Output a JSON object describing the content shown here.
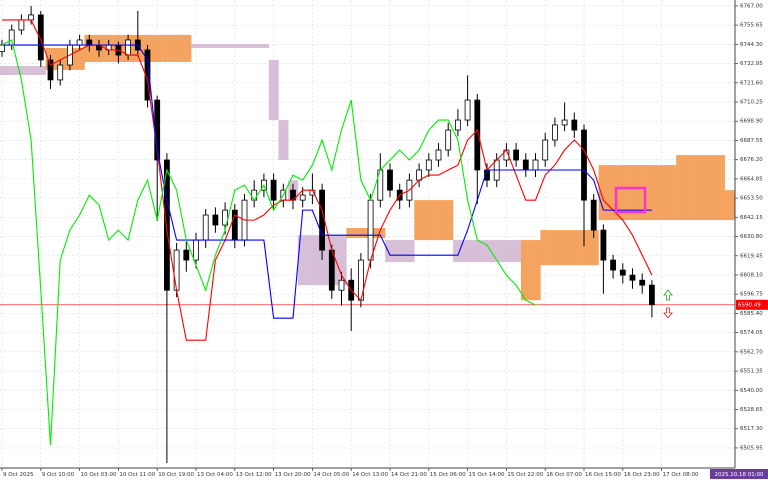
{
  "chart_data": {
    "type": "candlestick",
    "categories": [
      "9 Oct 2025",
      null,
      null,
      null,
      "9 Oct 10:00",
      null,
      null,
      null,
      "10 Oct 03:00",
      null,
      null,
      null,
      "10 Oct 11:00",
      null,
      null,
      null,
      "10 Oct 19:00",
      null,
      null,
      null,
      "13 Oct 04:00",
      null,
      null,
      null,
      "13 Oct 12:00",
      null,
      null,
      null,
      "13 Oct 20:00",
      null,
      null,
      null,
      "14 Oct 05:00",
      null,
      null,
      null,
      "14 Oct 13:00",
      null,
      null,
      null,
      "14 Oct 21:00",
      null,
      null,
      null,
      "15 Oct 06:00",
      null,
      null,
      null,
      "15 Oct 14:00",
      null,
      null,
      null,
      "15 Oct 22:00",
      null,
      null,
      null,
      "16 Oct 07:00",
      null,
      null,
      null,
      "16 Oct 15:00",
      null,
      null,
      null,
      "16 Oct 23:00",
      null,
      null,
      null,
      "17 Oct 08:00",
      null,
      null,
      null,
      null,
      null,
      null,
      null
    ],
    "open": [
      6740.0,
      6743.9,
      6752.8,
      6758.7,
      6761.7,
      6735.1,
      6723.3,
      6732.1,
      6743.9,
      6746.9,
      6743.9,
      6741.0,
      6743.9,
      6738.0,
      6746.9,
      6741.0,
      6711.4,
      6676.0,
      6599.1,
      6622.8,
      6616.9,
      6628.7,
      6643.5,
      6637.6,
      6646.4,
      6628.7,
      6652.3,
      6658.2,
      6664.1,
      6652.3,
      6658.2,
      6652.3,
      6655.3,
      6658.2,
      6622.8,
      6599.1,
      6605.0,
      6593.2,
      6616.9,
      6652.3,
      6670.1,
      6658.2,
      6652.3,
      6664.1,
      6670.1,
      6676.0,
      6681.9,
      6693.7,
      6699.6,
      6711.4,
      6670.1,
      6664.1,
      6676.0,
      6681.9,
      6676.0,
      6670.1,
      6676.0,
      6687.8,
      6696.7,
      6699.6,
      6693.7,
      6652.3,
      6634.6,
      6616.9,
      6611.0,
      6608.0,
      6605.0,
      6602.1,
      null,
      null,
      null,
      null,
      null,
      null,
      null,
      null
    ],
    "high": [
      6747,
      6756,
      6762,
      6767,
      6764,
      6738,
      6735,
      6747,
      6750,
      6750,
      6747,
      6747,
      6746,
      6750,
      6764,
      6744,
      6714,
      6680,
      6627,
      6628,
      6633,
      6647,
      6648,
      6651,
      6650,
      6656,
      6664,
      6668,
      6668,
      6662,
      6662,
      6660,
      6668,
      6662,
      6626,
      6610,
      6612,
      6621,
      6656,
      6680,
      6674,
      6662,
      6668,
      6674,
      6680,
      6686,
      6698,
      6706,
      6726,
      6715,
      6674,
      6680,
      6686,
      6686,
      6680,
      6680,
      6692,
      6701,
      6710,
      6704,
      6697,
      6656,
      6638,
      6620,
      6615,
      6612,
      6609,
      6605,
      null,
      null,
      null,
      null,
      null,
      null,
      null,
      null
    ],
    "low": [
      6737,
      6741,
      6750,
      6756,
      6731,
      6718,
      6720,
      6729,
      6741,
      6740,
      6737,
      6738,
      6733,
      6735,
      6737,
      6707,
      6640,
      6497,
      6595,
      6610,
      6612,
      6624,
      6633,
      6632,
      6624,
      6625,
      6648,
      6654,
      6647,
      6648,
      6647,
      6648,
      6650,
      6617,
      6594,
      6590,
      6575,
      6589,
      6612,
      6648,
      6654,
      6647,
      6648,
      6660,
      6666,
      6672,
      6678,
      6690,
      6696,
      6650,
      6660,
      6660,
      6672,
      6672,
      6666,
      6666,
      6672,
      6684,
      6693,
      6689,
      6625,
      6630,
      6597,
      6606,
      6603,
      6600,
      6597,
      6583,
      null,
      null,
      null,
      null,
      null,
      null,
      null,
      null
    ],
    "close": [
      6743.9,
      6752.8,
      6758.7,
      6761.7,
      6735.1,
      6723.3,
      6732.1,
      6743.9,
      6746.9,
      6743.9,
      6741.0,
      6743.9,
      6738.0,
      6746.9,
      6741.0,
      6711.4,
      6676.0,
      6599.1,
      6622.8,
      6616.9,
      6628.7,
      6643.5,
      6637.6,
      6646.4,
      6628.7,
      6652.3,
      6658.2,
      6664.1,
      6652.3,
      6658.2,
      6652.3,
      6655.3,
      6658.2,
      6622.8,
      6599.1,
      6605.0,
      6593.2,
      6616.9,
      6652.3,
      6670.1,
      6658.2,
      6652.3,
      6664.1,
      6670.1,
      6676.0,
      6681.9,
      6693.7,
      6699.6,
      6711.4,
      6670.1,
      6664.1,
      6676.0,
      6681.9,
      6676.0,
      6670.1,
      6676.0,
      6687.8,
      6696.7,
      6699.6,
      6693.7,
      6652.3,
      6634.6,
      6616.9,
      6611.0,
      6608.0,
      6605.0,
      6602.1,
      6590.49,
      null,
      null,
      null,
      null,
      null,
      null,
      null,
      null
    ],
    "candle_bull_color": "#ffffff",
    "candle_bear_color": "#000000",
    "lines": [
      {
        "color": "#ff0000",
        "values": [
          6758.7,
          6758.7,
          6758.7,
          6758.7,
          6746.9,
          6732.1,
          6735.1,
          6738.0,
          6741.0,
          6743.9,
          6743.9,
          6741.0,
          6741.0,
          6738.0,
          6738.0,
          6723.3,
          6681.9,
          6634.6,
          6599.1,
          6569.6,
          6569.6,
          6569.6,
          6616.9,
          6628.7,
          6643.5,
          6640.5,
          6640.5,
          6643.5,
          6649.4,
          6652.3,
          6652.3,
          6658.2,
          6658.2,
          6646.4,
          6622.8,
          6608.0,
          6599.1,
          6593.2,
          6616.9,
          6634.6,
          6646.4,
          6655.3,
          6658.2,
          6664.1,
          6667.1,
          6667.1,
          6670.1,
          6673.0,
          6687.8,
          6693.7,
          6670.1,
          6676.0,
          6681.9,
          6667.1,
          6652.3,
          6652.3,
          6667.1,
          6673.0,
          6681.9,
          6687.8,
          6681.9,
          6670.1,
          6652.3,
          6646.4,
          6640.5,
          6631.6,
          6619.8,
          6608.0,
          null,
          null,
          null,
          null,
          null,
          null,
          null,
          null
        ]
      },
      {
        "color": "#0000ff",
        "values": [
          6743.9,
          6743.9,
          6743.9,
          6743.9,
          6743.9,
          6743.9,
          6743.9,
          6743.9,
          6743.9,
          6743.9,
          6743.9,
          6743.9,
          6743.9,
          6743.9,
          6743.9,
          6735.1,
          6681.9,
          6652.3,
          6628.7,
          6628.7,
          6628.7,
          6628.7,
          6628.7,
          6628.7,
          6628.7,
          6628.7,
          6628.7,
          6628.7,
          6582.6,
          6582.6,
          6582.6,
          6646.4,
          6646.4,
          6631.6,
          6631.6,
          6631.6,
          6631.6,
          6631.6,
          6631.6,
          6631.6,
          6619.8,
          6619.8,
          6619.8,
          6619.8,
          6619.8,
          6619.8,
          6619.8,
          6619.8,
          6634.6,
          6652.3,
          6670.1,
          6670.1,
          6670.1,
          6670.1,
          6670.1,
          6670.1,
          6670.1,
          6670.1,
          6670.1,
          6670.1,
          6670.1,
          6664.1,
          6646.4,
          6646.4,
          6646.4,
          6646.4,
          6646.4,
          6646.4,
          null,
          null,
          null,
          null,
          null,
          null,
          null,
          null
        ]
      },
      {
        "color": "#00ee00",
        "values": [
          6743.9,
          6746.9,
          6723.3,
          6687.8,
          6599.1,
          6507.5,
          6616.9,
          6634.6,
          6643.5,
          6655.3,
          6649.4,
          6628.7,
          6634.6,
          6628.7,
          6652.3,
          6664.1,
          6640.5,
          6670.1,
          6658.2,
          6628.7,
          6613.9,
          6599.1,
          6619.8,
          6634.6,
          6658.2,
          6661.2,
          6652.3,
          6661.2,
          6646.4,
          6655.3,
          6667.1,
          6664.1,
          6673.0,
          6687.8,
          6670.1,
          6693.7,
          6711.4,
          6664.1,
          6652.3,
          6670.1,
          6676.0,
          6681.9,
          6676.0,
          6681.9,
          6693.7,
          6699.6,
          6699.6,
          6687.8,
          6652.3,
          6628.7,
          6625.7,
          6616.9,
          6608.0,
          6602.1,
          6593.2,
          6590.3,
          null,
          null,
          null,
          null,
          null,
          null,
          null,
          null,
          null,
          null,
          null,
          null,
          null,
          null,
          null,
          null,
          null,
          null,
          null,
          null
        ]
      }
    ],
    "cloud": {
      "bull_color": "#f4a460",
      "bear_color": "#d8bfd8",
      "a": [
        6726.2,
        6726.2,
        6726.2,
        6726.2,
        6726.2,
        6742.2,
        6742.2,
        6742.2,
        6742.2,
        6749.9,
        6749.9,
        6749.9,
        6749.9,
        6749.9,
        6749.9,
        6749.9,
        6749.9,
        6749.9,
        6749.9,
        6749.9,
        6742.2,
        6742.2,
        6742.2,
        6742.2,
        6742.2,
        6742.2,
        6742.2,
        6742.2,
        6699.6,
        6676.0,
        6652.3,
        6602.1,
        6602.1,
        6602.1,
        6602.1,
        6602.1,
        6635.8,
        6635.8,
        6635.8,
        6635.8,
        6615.7,
        6615.7,
        6615.7,
        6652.3,
        6652.3,
        6652.3,
        6652.3,
        6615.7,
        6615.7,
        6615.7,
        6615.7,
        6615.7,
        6615.7,
        6615.7,
        6628.7,
        6628.7,
        6634.6,
        6634.6,
        6634.6,
        6634.6,
        6634.6,
        6634.6,
        6673.0,
        6673.0,
        6673.0,
        6673.0,
        6673.0,
        6673.0,
        6673.0,
        6673.0,
        6678.9,
        6678.9,
        6678.9,
        6678.9,
        6678.9,
        6658.2
      ],
      "b": [
        6731.5,
        6731.5,
        6731.5,
        6731.5,
        6731.5,
        6729.2,
        6729.2,
        6729.2,
        6729.2,
        6733.9,
        6733.9,
        6733.9,
        6733.9,
        6733.9,
        6733.9,
        6733.9,
        6733.9,
        6733.9,
        6733.9,
        6733.9,
        6744.5,
        6744.5,
        6744.5,
        6744.5,
        6744.5,
        6744.5,
        6744.5,
        6744.5,
        6735.1,
        6699.6,
        6664.1,
        6631.6,
        6631.6,
        6631.6,
        6631.6,
        6631.6,
        6629.9,
        6629.9,
        6629.9,
        6629.9,
        6628.7,
        6628.7,
        6628.7,
        6628.7,
        6628.7,
        6628.7,
        6628.7,
        6628.7,
        6628.7,
        6628.7,
        6628.7,
        6628.7,
        6628.7,
        6628.7,
        6593.2,
        6593.2,
        6613.9,
        6613.9,
        6613.9,
        6613.9,
        6613.9,
        6613.9,
        6640.5,
        6640.5,
        6640.5,
        6640.5,
        6640.5,
        6640.5,
        6640.5,
        6640.5,
        6640.5,
        6640.5,
        6640.5,
        6640.5,
        6640.5,
        6640.5
      ]
    },
    "current_price": 6590.49,
    "current_price_color": "#ff0000",
    "time_label": "2025.10.18 01:00",
    "ylim": [
      6494.1,
      6770.5
    ],
    "yticks": [
      {
        "value": 6767,
        "label": "6767.00"
      },
      6755.65,
      {
        "value": 6744.3,
        "label": "6744.30"
      },
      6732.95,
      {
        "value": 6721.6,
        "label": "6721.60"
      },
      6710.25,
      {
        "value": 6698.9,
        "label": "6698.90"
      },
      6687.55,
      {
        "value": 6676.2,
        "label": "6676.20"
      },
      6664.85,
      {
        "value": 6653.5,
        "label": "6653.50"
      },
      6642.15,
      {
        "value": 6630.8,
        "label": "6630.80"
      },
      6619.45,
      {
        "value": 6608.1,
        "label": "6608.10"
      },
      6596.75,
      {
        "value": 6585.4,
        "label": "6585.40"
      },
      6574.05,
      {
        "value": 6562.7,
        "label": "6562.70"
      },
      6551.35,
      {
        "value": 6540,
        "label": "6540.00"
      },
      6528.65,
      {
        "value": 6517.3,
        "label": "6517.30"
      },
      6505.95
    ],
    "grid": true
  }
}
